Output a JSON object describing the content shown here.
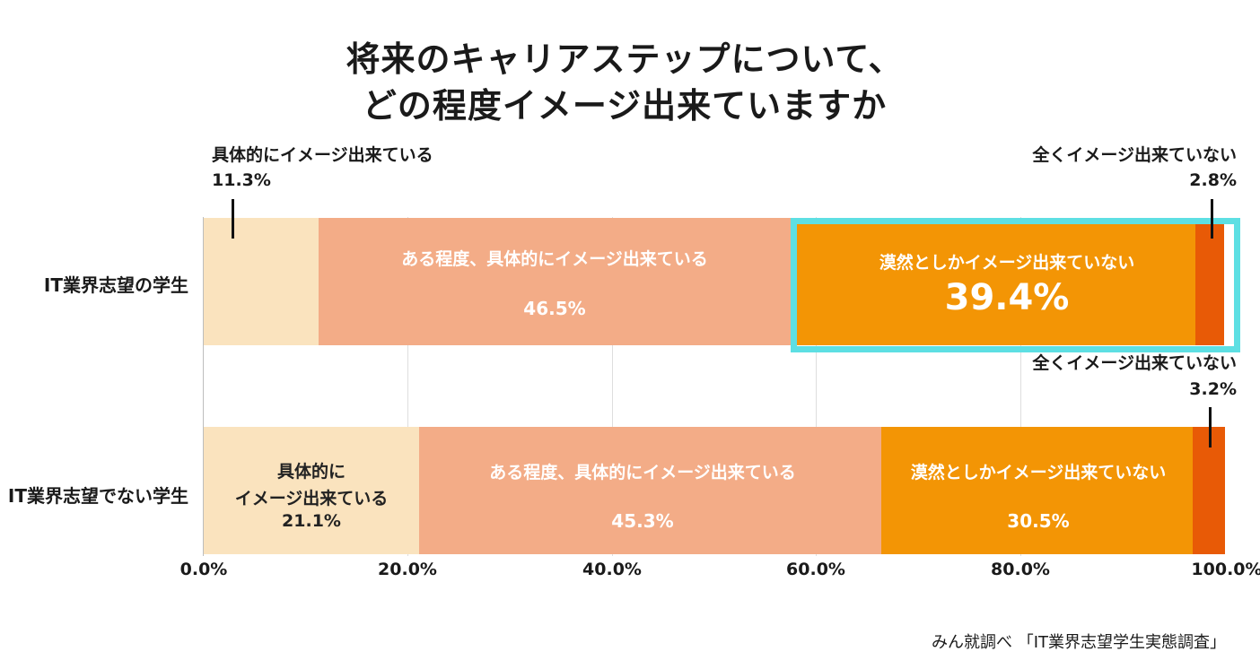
{
  "chart_data": {
    "type": "bar",
    "orientation": "horizontal",
    "stacked": true,
    "title_line1": "将来のキャリアステップについて、",
    "title_line2": "どの程度イメージ出来ていますか",
    "categories": [
      "IT業界志望の学生",
      "IT業界志望でない学生"
    ],
    "x_ticks": [
      "0.0%",
      "20.0%",
      "40.0%",
      "60.0%",
      "80.0%",
      "100.0%"
    ],
    "xlim": [
      0,
      100
    ],
    "grid": true,
    "series": [
      {
        "name": "具体的にイメージ出来ている",
        "color": "#fae3be",
        "values": [
          11.3,
          21.1
        ],
        "value_labels": [
          "11.3%",
          "21.1%"
        ]
      },
      {
        "name": "ある程度、具体的にイメージ出来ている",
        "color": "#f3ac87",
        "values": [
          46.5,
          45.3
        ],
        "value_labels": [
          "46.5%",
          "45.3%"
        ]
      },
      {
        "name": "漠然としかイメージ出来ていない",
        "color": "#f39505",
        "values": [
          39.4,
          30.5
        ],
        "value_labels": [
          "39.4%",
          "30.5%"
        ]
      },
      {
        "name": "全くイメージ出来ていない",
        "color": "#e85a06",
        "values": [
          2.8,
          3.2
        ],
        "value_labels": [
          "2.8%",
          "3.2%"
        ]
      }
    ],
    "annotations": {
      "row2_seg1_line1": "具体的に",
      "row2_seg1_line2": "イメージ出来ている"
    },
    "highlight": {
      "row": 0,
      "series": 2,
      "color": "#5ddfe3"
    }
  },
  "source": "みん就調べ 「IT業界志望学生実態調査」"
}
